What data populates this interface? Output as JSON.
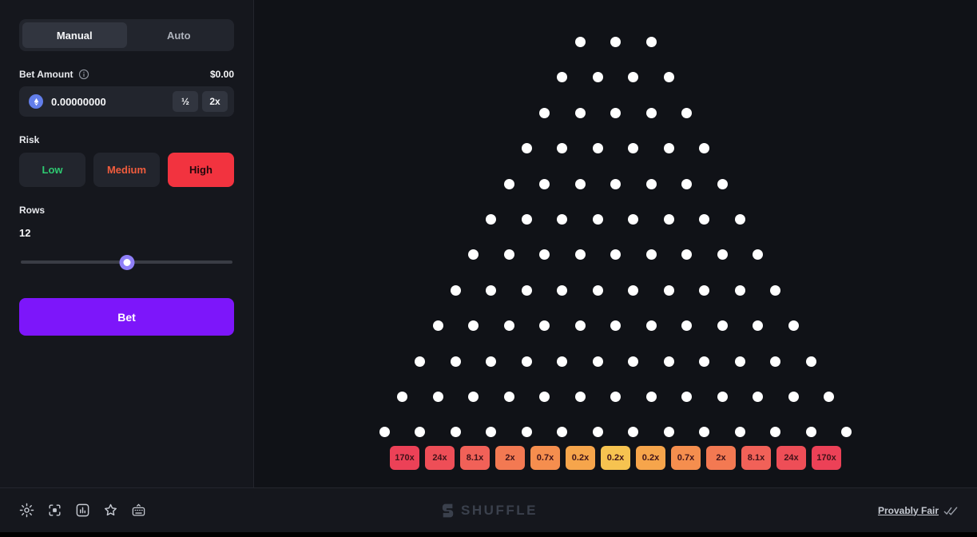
{
  "sidebar": {
    "tabs": {
      "manual": "Manual",
      "auto": "Auto"
    },
    "bet_amount": {
      "label": "Bet Amount",
      "usd_value": "$0.00",
      "value": "0.00000000",
      "currency": "ethereum",
      "half_label": "½",
      "double_label": "2x"
    },
    "risk": {
      "label": "Risk",
      "options": [
        {
          "label": "Low",
          "color": "#2EC971",
          "selected": false
        },
        {
          "label": "Medium",
          "color": "#F05C3D",
          "selected": false
        },
        {
          "label": "High",
          "color": "#F2333F",
          "selected": true
        }
      ]
    },
    "rows": {
      "label": "Rows",
      "value": "12",
      "slider_percent": 50
    },
    "bet_button": {
      "label": "Bet",
      "color": "#7D16FA"
    }
  },
  "game": {
    "board": {
      "rows": 12,
      "top_pegs": 3,
      "peg_color": "#FFFFFF"
    },
    "multipliers": [
      {
        "label": "170x",
        "color": "#EC4157"
      },
      {
        "label": "24x",
        "color": "#EE4E57"
      },
      {
        "label": "8.1x",
        "color": "#F16158"
      },
      {
        "label": "2x",
        "color": "#F37952"
      },
      {
        "label": "0.7x",
        "color": "#F58E4E"
      },
      {
        "label": "0.2x",
        "color": "#F6A54B"
      },
      {
        "label": "0.2x",
        "color": "#F6C350"
      },
      {
        "label": "0.2x",
        "color": "#F6A54B"
      },
      {
        "label": "0.7x",
        "color": "#F58E4E"
      },
      {
        "label": "2x",
        "color": "#F37952"
      },
      {
        "label": "8.1x",
        "color": "#F16158"
      },
      {
        "label": "24x",
        "color": "#EE4E57"
      },
      {
        "label": "170x",
        "color": "#EC4157"
      }
    ]
  },
  "footer": {
    "brand": "SHUFFLE",
    "provably_fair_label": "Provably Fair"
  }
}
